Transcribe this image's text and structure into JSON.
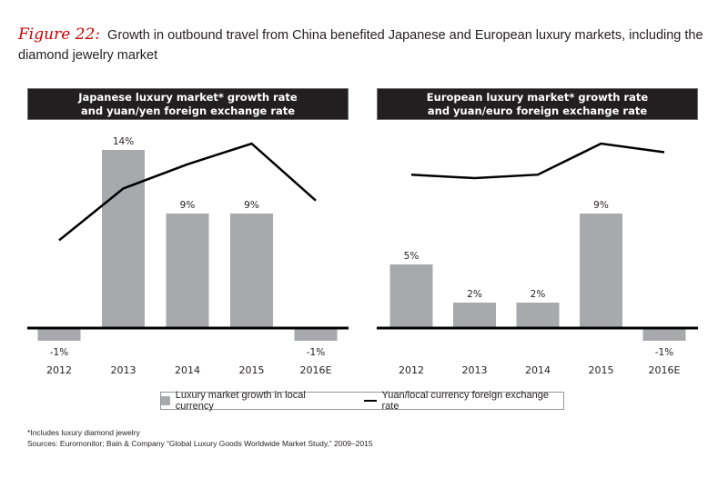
{
  "figure": {
    "label": "Figure 22:",
    "title": "Growth in outbound travel from China benefited Japanese and European luxury markets, including the diamond jewelry market"
  },
  "colors": {
    "bar": "#a7a9ac",
    "line": "#000000",
    "header_bg": "#231f20",
    "figure_label": "#cc0000"
  },
  "chart_data": [
    {
      "type": "bar",
      "title": "Japanese luxury market* growth rate and yuan/yen foreign exchange rate",
      "title_lines": [
        "Japanese luxury market* growth rate",
        "and yuan/yen foreign exchange rate"
      ],
      "categories": [
        "2012",
        "2013",
        "2014",
        "2015",
        "2016E"
      ],
      "series": [
        {
          "name": "Luxury market growth in local currency",
          "kind": "bar",
          "values": [
            -1,
            14,
            9,
            9,
            -1
          ],
          "labels": [
            "-1%",
            "14%",
            "9%",
            "9%",
            "-1%"
          ]
        },
        {
          "name": "Yuan/local currency foreign exchange rate",
          "kind": "line",
          "relative_values": [
            0.44,
            0.74,
            0.88,
            1.0,
            0.67
          ]
        }
      ],
      "xlabel": "",
      "ylabel": "",
      "ylim": [
        -1,
        14
      ],
      "grid": false
    },
    {
      "type": "bar",
      "title": "European luxury market* growth rate and yuan/euro foreign exchange rate",
      "title_lines": [
        "European luxury market* growth rate",
        "and yuan/euro foreign exchange rate"
      ],
      "categories": [
        "2012",
        "2013",
        "2014",
        "2015",
        "2016E"
      ],
      "series": [
        {
          "name": "Luxury market growth in local currency",
          "kind": "bar",
          "values": [
            5,
            2,
            2,
            9,
            -1
          ],
          "labels": [
            "5%",
            "2%",
            "2%",
            "9%",
            "-1%"
          ]
        },
        {
          "name": "Yuan/local currency foreign exchange rate",
          "kind": "line",
          "relative_values": [
            0.82,
            0.8,
            0.82,
            1.0,
            0.95
          ]
        }
      ],
      "xlabel": "",
      "ylabel": "",
      "ylim": [
        -1,
        14
      ],
      "grid": false
    }
  ],
  "legend": {
    "items": [
      "Luxury market growth in local currency",
      "Yuan/local currency foreign exchange rate"
    ],
    "placement": "bottom-center"
  },
  "footnotes": [
    "*Includes luxury diamond jewelry",
    "Sources: Euromonitor; Bain & Company “Global Luxury Goods Worldwide Market Study,” 2009–2015"
  ]
}
